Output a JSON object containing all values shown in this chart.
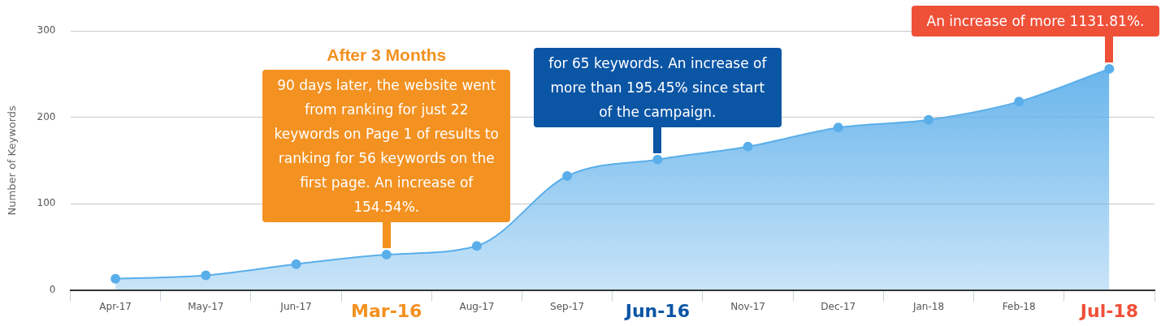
{
  "chart_data": {
    "type": "area",
    "ylabel": "Number of Keywords",
    "categories": [
      "Apr-17",
      "May-17",
      "Jun-17",
      "Mar-16",
      "Aug-17",
      "Sep-17",
      "Jun-16",
      "Nov-17",
      "Dec-17",
      "Jan-18",
      "Feb-18",
      "Jul-18"
    ],
    "series": [
      {
        "color": "#5aaeea",
        "values": [
          13,
          17,
          30,
          41,
          51,
          132,
          151,
          166,
          188,
          197,
          218,
          256
        ]
      }
    ],
    "ylim": [
      0,
      300
    ],
    "yticks": [
      0,
      100,
      200,
      300
    ],
    "grid": "y",
    "legend": false,
    "marker": "circle",
    "annotations": [
      "After 3 Months",
      {
        "text": "90 days later, the website went from ranking for just 22 keywords on Page 1 of results to ranking for 56 keywords on the first page. An increase of 154.54%.",
        "x": "Mar-16",
        "y": 41
      },
      {
        "text": "for 65 keywords. An increase of more than 195.45% since start of the campaign.",
        "x": "Jun-16",
        "y": 151
      },
      {
        "text": "An increase of more 1131.81%.",
        "x": "Jul-18",
        "y": 256
      }
    ]
  }
}
